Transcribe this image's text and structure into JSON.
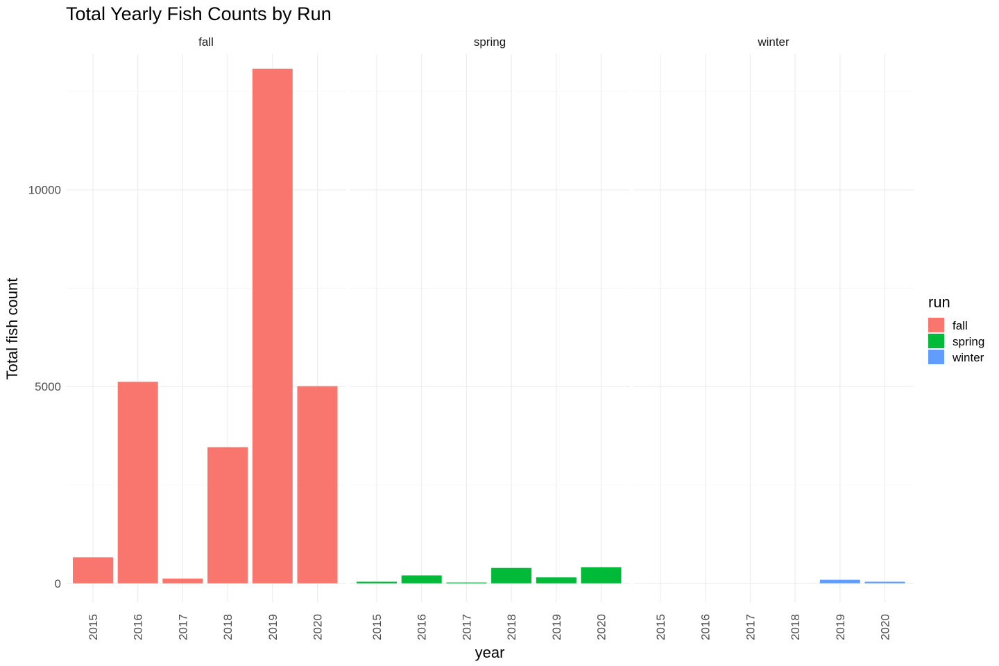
{
  "chart_data": {
    "type": "bar",
    "title": "Total Yearly Fish Counts by Run",
    "xlabel": "year",
    "ylabel": "Total fish count",
    "ylim": [
      -480,
      13450
    ],
    "y_ticks": [
      0,
      5000,
      10000
    ],
    "y_tick_labels": [
      "0",
      "5000",
      "10000"
    ],
    "grid": true,
    "legend": {
      "title": "run",
      "position": "right",
      "entries": [
        {
          "label": "fall",
          "color": "#F8766D"
        },
        {
          "label": "spring",
          "color": "#00BA38"
        },
        {
          "label": "winter",
          "color": "#619CFF"
        }
      ]
    },
    "categories": [
      "2015",
      "2016",
      "2017",
      "2018",
      "2019",
      "2020"
    ],
    "panels": [
      {
        "label": "fall",
        "color": "#F8766D",
        "values": [
          660,
          5120,
          120,
          3460,
          13080,
          5010
        ]
      },
      {
        "label": "spring",
        "color": "#00BA38",
        "values": [
          40,
          200,
          20,
          390,
          150,
          410
        ]
      },
      {
        "label": "winter",
        "color": "#619CFF",
        "values": [
          0,
          0,
          0,
          0,
          90,
          40
        ]
      }
    ]
  }
}
